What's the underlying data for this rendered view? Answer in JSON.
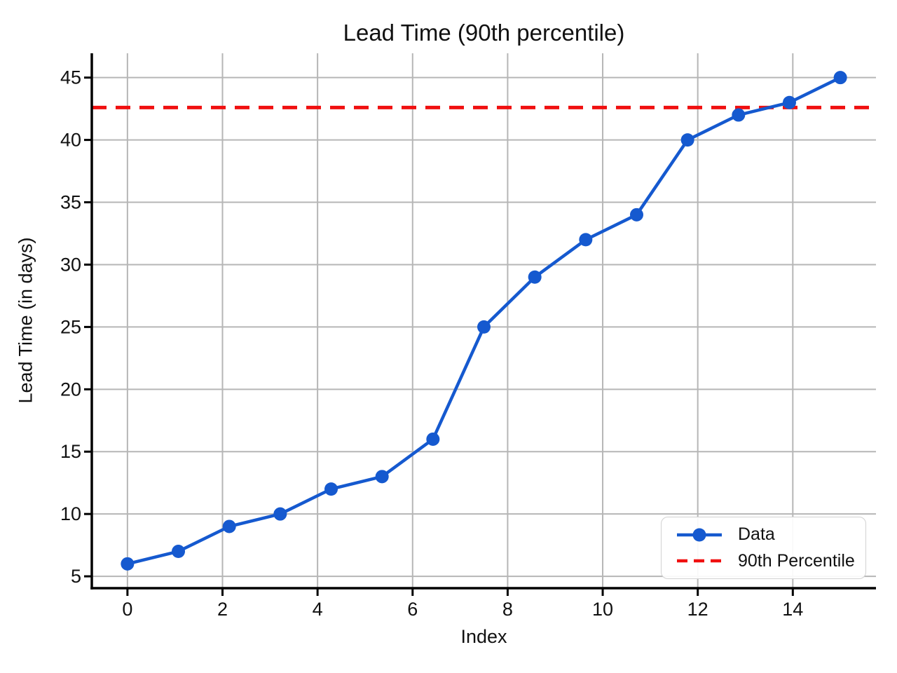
{
  "chart_data": {
    "type": "line",
    "title": "Lead Time (90th percentile)",
    "xlabel": "Index",
    "ylabel": "Lead Time (in days)",
    "x": [
      0,
      1.0714,
      2.1429,
      3.2143,
      4.2857,
      5.3571,
      6.4286,
      7.5,
      8.5714,
      9.6429,
      10.7143,
      11.7857,
      12.8571,
      13.9286,
      15
    ],
    "series": [
      {
        "name": "Data",
        "type": "line+markers",
        "color": "#1559cf",
        "y": [
          6,
          7,
          9,
          10,
          12,
          13,
          16,
          25,
          29,
          32,
          34,
          40,
          42,
          43,
          45
        ]
      },
      {
        "name": "90th Percentile",
        "type": "horizontal-dashed-line",
        "color": "#f01010",
        "value": 42.6
      }
    ],
    "xlim": [
      -0.75,
      15.75
    ],
    "ylim": [
      4.05,
      46.95
    ],
    "xticks": [
      0,
      2,
      4,
      6,
      8,
      10,
      12,
      14
    ],
    "yticks": [
      5,
      10,
      15,
      20,
      25,
      30,
      35,
      40,
      45
    ],
    "grid": true,
    "grid_color": "#b6b6b6",
    "axis_color": "#000000",
    "tick_label_color": "#111111",
    "legend_position": "lower right"
  }
}
